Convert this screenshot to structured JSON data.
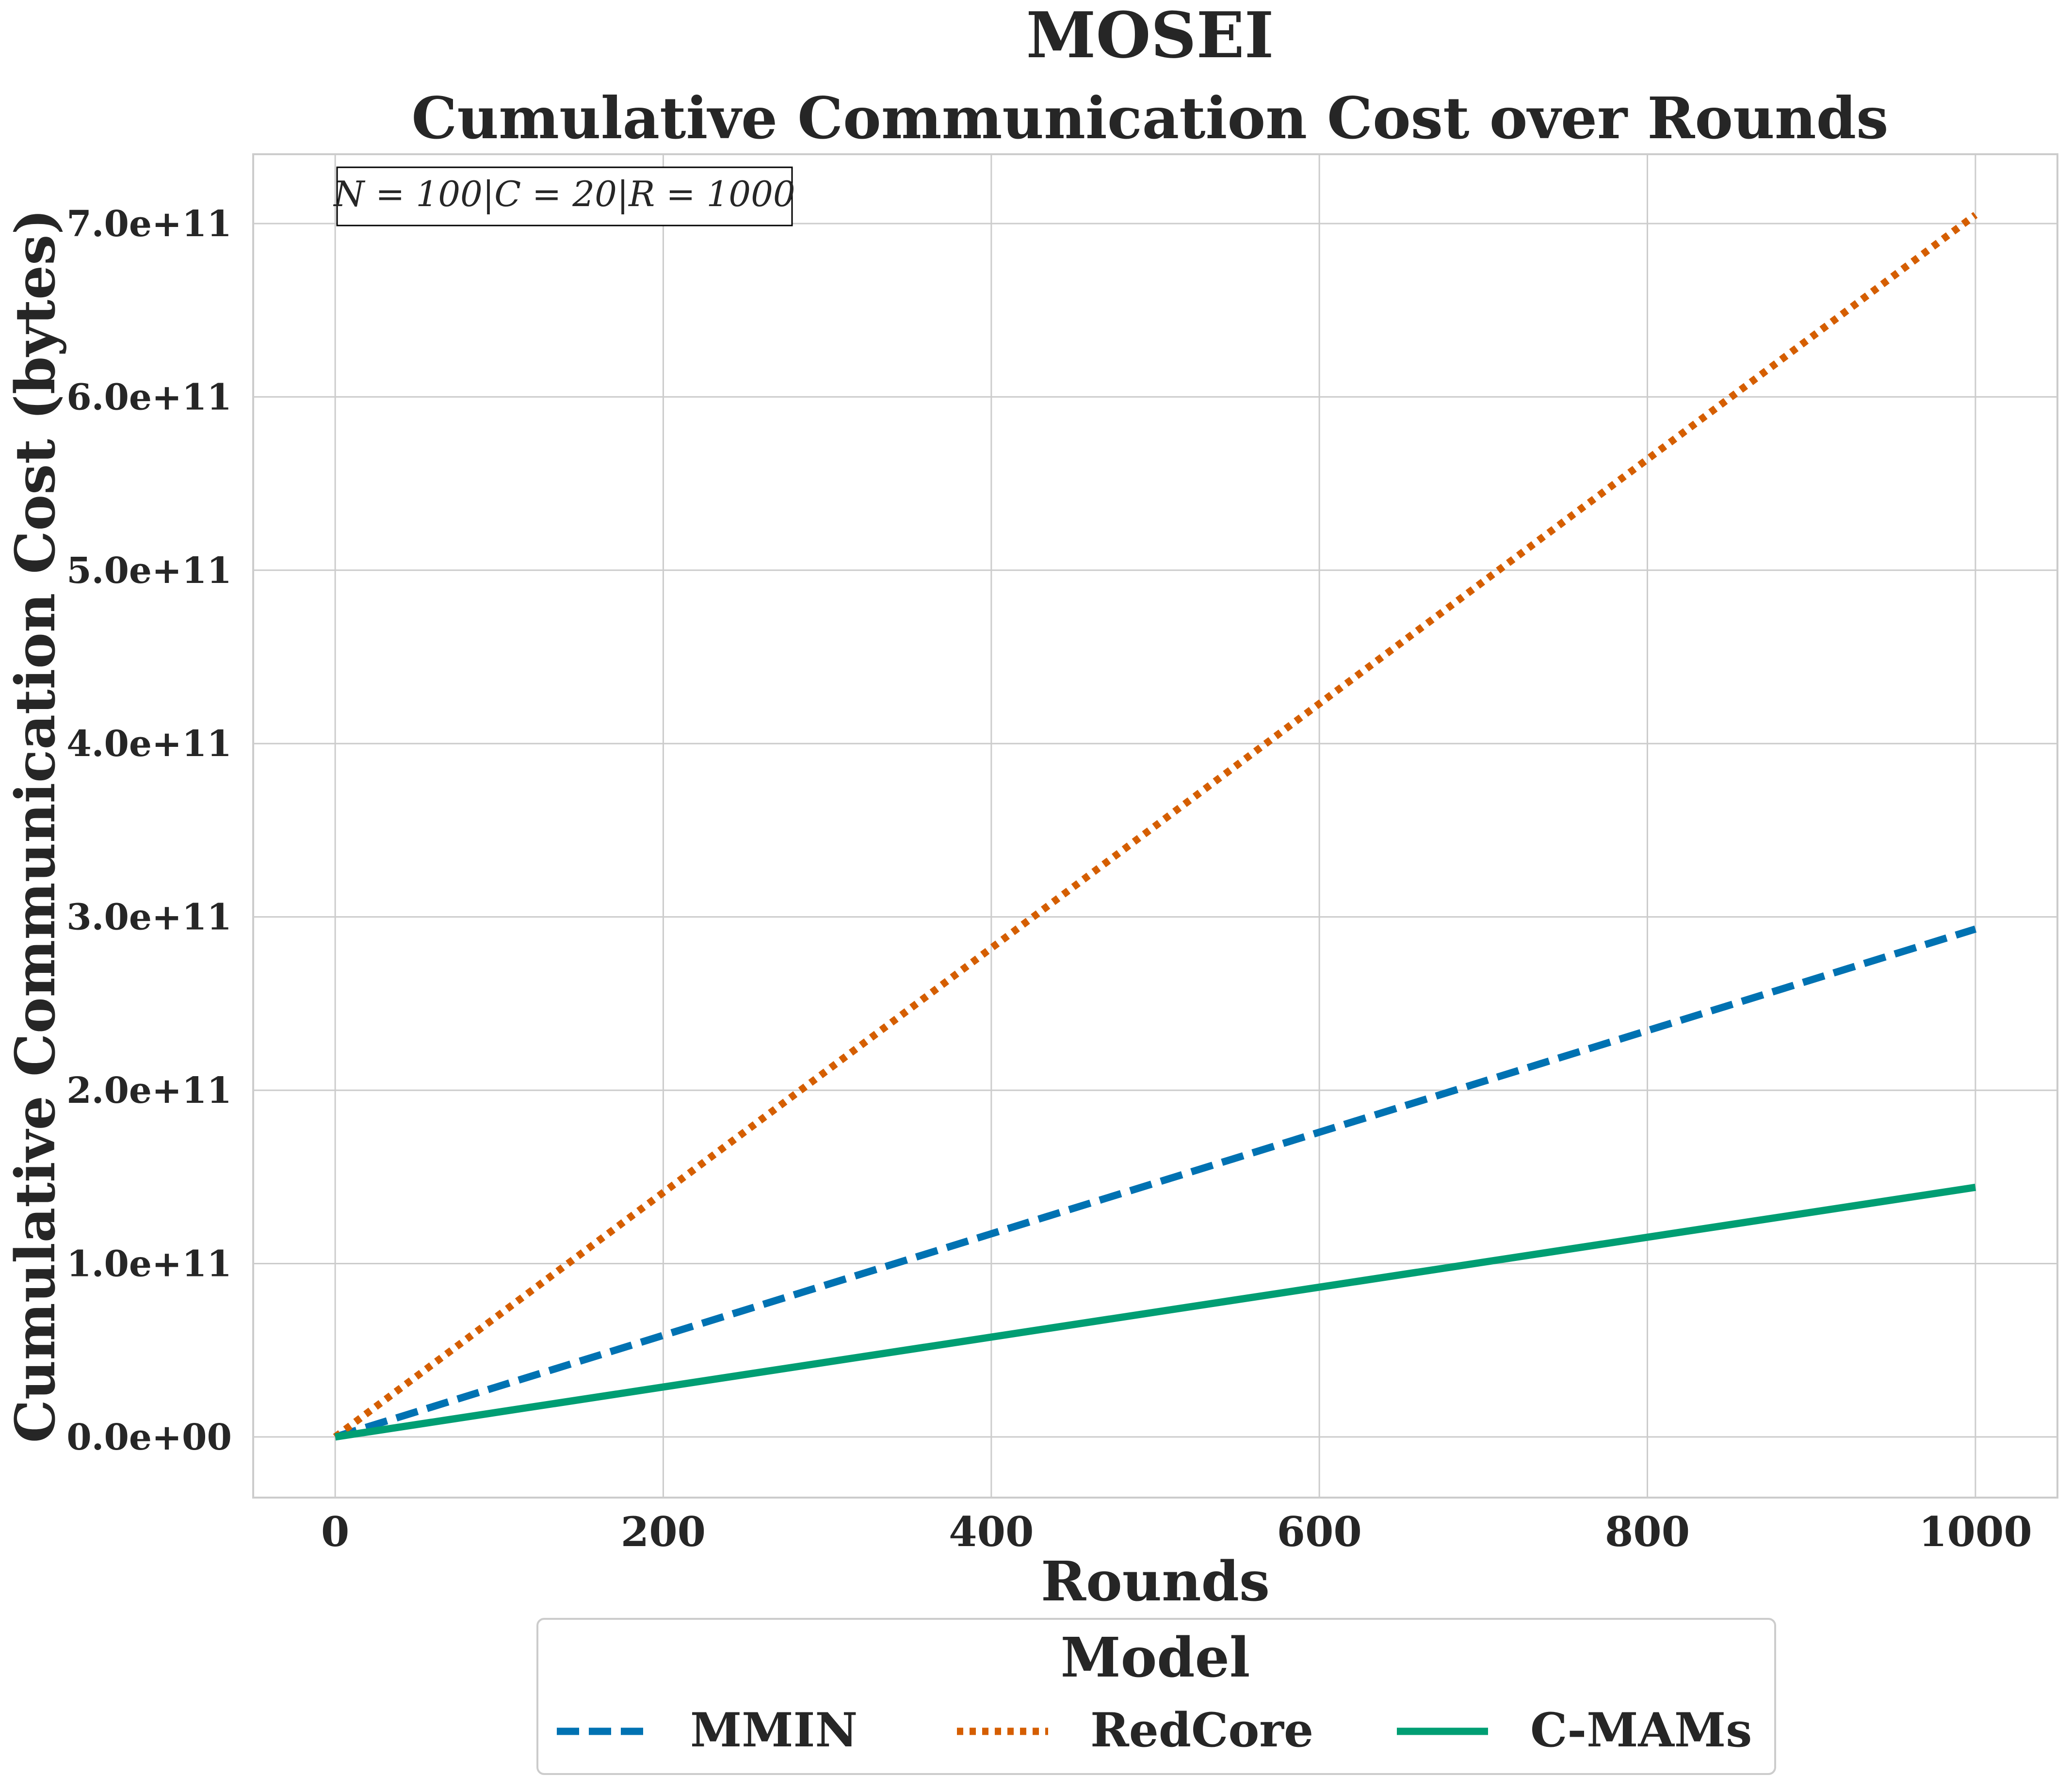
{
  "chart_data": {
    "type": "line",
    "suptitle": "MOSEI",
    "title": "Cumulative Communication Cost over Rounds",
    "xlabel": "Rounds",
    "ylabel": "Cumulative Communication Cost (bytes)",
    "xlim": [
      -50,
      1050
    ],
    "ylim": [
      -35000000000.0,
      740000000000.0
    ],
    "xticks": [
      0,
      200,
      400,
      600,
      800,
      1000
    ],
    "xtick_labels": [
      "0",
      "200",
      "400",
      "600",
      "800",
      "1000"
    ],
    "yticks": [
      0,
      100000000000.0,
      200000000000.0,
      300000000000.0,
      400000000000.0,
      500000000000.0,
      600000000000.0,
      700000000000.0
    ],
    "ytick_labels": [
      "0.0e+00",
      "1.0e+11",
      "2.0e+11",
      "3.0e+11",
      "4.0e+11",
      "5.0e+11",
      "6.0e+11",
      "7.0e+11"
    ],
    "grid": true,
    "annotation": "N = 100|C = 20|R = 1000",
    "annotation_position": "top-left",
    "legend": {
      "title": "Model",
      "position": "bottom-center"
    },
    "x": [
      0,
      1000
    ],
    "series": [
      {
        "name": "MMIN",
        "style": "dashed",
        "color": "#0072b2",
        "values": [
          0,
          293000000000.0
        ]
      },
      {
        "name": "RedCore",
        "style": "dotted",
        "color": "#d55e00",
        "values": [
          0,
          705000000000.0
        ]
      },
      {
        "name": "C-MAMs",
        "style": "solid",
        "color": "#009e73",
        "values": [
          0,
          144000000000.0
        ]
      }
    ]
  }
}
